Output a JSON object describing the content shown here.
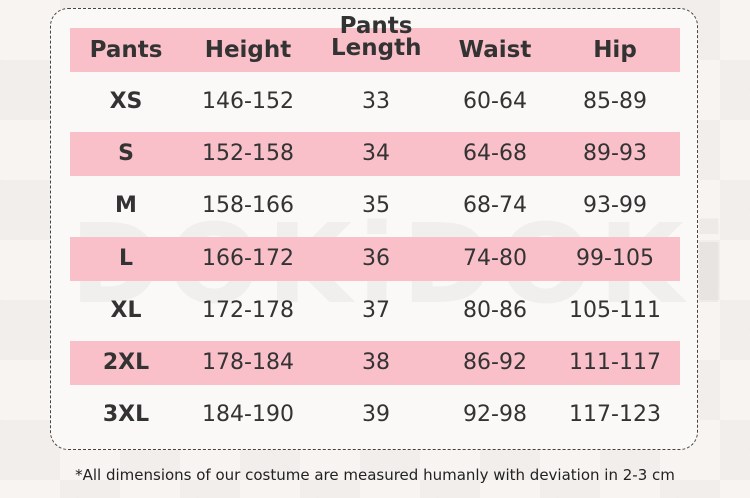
{
  "watermark": "DOKiDOKi",
  "table": {
    "header": [
      "Pants",
      "Height",
      "Pants Length",
      "Waist",
      "Hip"
    ],
    "rows": [
      [
        "XS",
        "146-152",
        "33",
        "60-64",
        "85-89"
      ],
      [
        "S",
        "152-158",
        "34",
        "64-68",
        "89-93"
      ],
      [
        "M",
        "158-166",
        "35",
        "68-74",
        "93-99"
      ],
      [
        "L",
        "166-172",
        "36",
        "74-80",
        "99-105"
      ],
      [
        "XL",
        "172-178",
        "37",
        "80-86",
        "105-111"
      ],
      [
        "2XL",
        "178-184",
        "38",
        "86-92",
        "111-117"
      ],
      [
        "3XL",
        "184-190",
        "39",
        "92-98",
        "117-123"
      ]
    ]
  },
  "footnote": "*All dimensions of our costume are measured humanly with deviation in 2-3 cm"
}
